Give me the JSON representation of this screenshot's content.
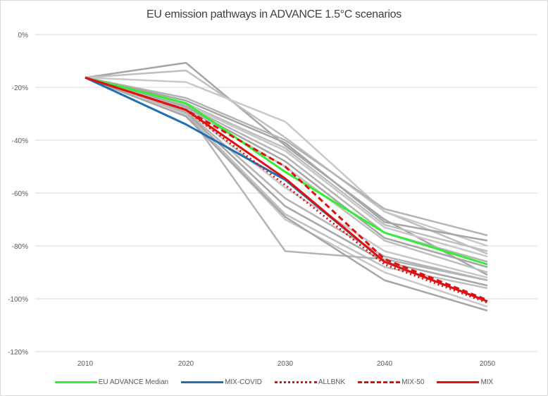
{
  "chart_data": {
    "type": "line",
    "title": "EU emission pathways in ADVANCE 1.5°C scenarios",
    "xlabel": "",
    "ylabel": "",
    "x": [
      2010,
      2020,
      2030,
      2040,
      2050
    ],
    "x_tick_labels": [
      "2010",
      "2020",
      "2030",
      "2040",
      "2050"
    ],
    "ylim": [
      -120,
      0
    ],
    "y_ticks": [
      0,
      -20,
      -40,
      -60,
      -80,
      -100,
      -120
    ],
    "y_tick_labels": [
      "0%",
      "-20%",
      "-40%",
      "-60%",
      "-80%",
      "-100%",
      "-120%"
    ],
    "grid": true,
    "legend_position": "bottom",
    "background_series": {
      "name": "ADVANCE 1.5°C scenarios (unlabeled)",
      "color": "#b4b4b4",
      "lines": [
        [
          -16.3,
          -10.7,
          -42,
          -70,
          -91
        ],
        [
          -16.3,
          -13.6,
          -39,
          -67,
          -83
        ],
        [
          -16.3,
          -18,
          -33,
          -67,
          -80
        ],
        [
          -16.3,
          -24,
          -40,
          -66,
          -76
        ],
        [
          -16.3,
          -25,
          -41,
          -71,
          -78
        ],
        [
          -16.3,
          -26,
          -43,
          -72,
          -82
        ],
        [
          -16.3,
          -26.5,
          -44,
          -73,
          -84
        ],
        [
          -16.3,
          -27,
          -46,
          -75,
          -86
        ],
        [
          -16.3,
          -27.5,
          -48,
          -77,
          -88
        ],
        [
          -16.3,
          -28,
          -50,
          -78,
          -90
        ],
        [
          -16.3,
          -28.5,
          -58,
          -82,
          -92
        ],
        [
          -16.3,
          -29,
          -62,
          -84,
          -93
        ],
        [
          -16.3,
          -29.5,
          -65,
          -86,
          -95
        ],
        [
          -16.3,
          -30,
          -68,
          -88,
          -96
        ],
        [
          -16.3,
          -30.5,
          -70,
          -90,
          -103
        ],
        [
          -16.3,
          -29,
          -82,
          -85,
          -93
        ],
        [
          -16.3,
          -31,
          -69,
          -93,
          -104.5
        ]
      ]
    },
    "series": [
      {
        "name": "EU ADVANCE Median",
        "color": "#33ee33",
        "style": "solid",
        "values": [
          -16.3,
          -26,
          -52,
          -75,
          -87
        ]
      },
      {
        "name": "MIX-COVID",
        "color": "#1f6fb4",
        "style": "solid",
        "values": [
          -16.3,
          -34,
          -55,
          -86,
          -101
        ]
      },
      {
        "name": "ALLBNK",
        "color": "#e01010",
        "style": "dotted",
        "values": [
          -16.3,
          -28.5,
          -57,
          -87,
          -101.5
        ]
      },
      {
        "name": "MIX-50",
        "color": "#e01010",
        "style": "dashed",
        "values": [
          -16.3,
          -28.5,
          -50,
          -85,
          -100.5
        ]
      },
      {
        "name": "MIX",
        "color": "#e01010",
        "style": "solid",
        "values": [
          -16.3,
          -28.5,
          -54.5,
          -86,
          -101
        ]
      }
    ]
  }
}
